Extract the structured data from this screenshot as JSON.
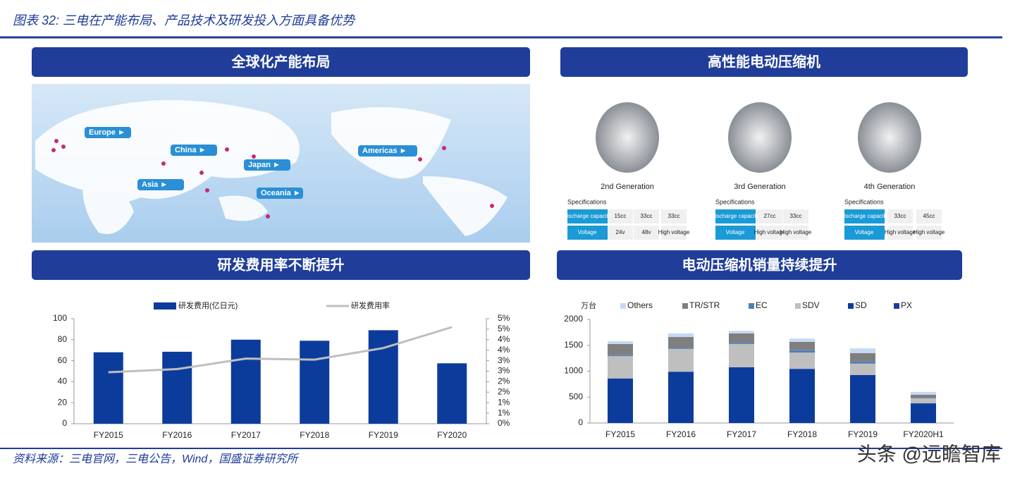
{
  "header": {
    "title": "图表 32: 三电在产能布局、产品技术及研发投入方面具备优势"
  },
  "panels": [
    "全球化产能布局",
    "高性能电动压缩机",
    "研发费用率不断提升",
    "电动压缩机销量持续提升"
  ],
  "map": {
    "labels": [
      "Europe ►",
      "China ►",
      "Japan ►",
      "Asia ►",
      "Americas ►",
      "Oceania ►"
    ]
  },
  "compressors": [
    {
      "generation": "2nd Generation",
      "spec_title": "Specifications",
      "rows": [
        [
          "Discharge capacity",
          "15cc",
          "33cc",
          "33cc"
        ],
        [
          "Voltage",
          "24v",
          "48v",
          "High voltage"
        ]
      ]
    },
    {
      "generation": "3rd Generation",
      "spec_title": "Specifications",
      "rows": [
        [
          "Discharge capacity",
          "27cc",
          "33cc"
        ],
        [
          "Voltage",
          "High voltage",
          "High voltage"
        ]
      ]
    },
    {
      "generation": "4th Generation",
      "spec_title": "Specifications",
      "rows": [
        [
          "Discharge capacity",
          "33cc",
          "45cc"
        ],
        [
          "Voltage",
          "High voltage",
          "High voltage"
        ]
      ]
    }
  ],
  "chart_data": [
    {
      "type": "bar_line",
      "categories": [
        "FY2015",
        "FY2016",
        "FY2017",
        "FY2018",
        "FY2019",
        "FY2020"
      ],
      "series": [
        {
          "name": "研发费用(亿日元)",
          "type": "bar",
          "color": "#0c3c9b",
          "values": [
            68,
            68.5,
            80,
            79,
            89,
            57.5
          ]
        },
        {
          "name": "研发费用率",
          "type": "line",
          "axis": "y2",
          "color": "#bfbfbf",
          "values": [
            2.45,
            2.6,
            3.1,
            3.05,
            3.6,
            4.6
          ]
        }
      ],
      "ylim": [
        0,
        100
      ],
      "yticks": [
        0,
        20,
        40,
        60,
        80,
        100
      ],
      "y2lim": [
        0,
        5
      ],
      "y2ticks": [
        {
          "value": 0,
          "label": "0%"
        },
        {
          "value": 0.5,
          "label": "1%"
        },
        {
          "value": 1,
          "label": "1%"
        },
        {
          "value": 1.5,
          "label": "2%"
        },
        {
          "value": 2,
          "label": "2%"
        },
        {
          "value": 2.5,
          "label": "3%"
        },
        {
          "value": 3,
          "label": "3%"
        },
        {
          "value": 3.5,
          "label": "4%"
        },
        {
          "value": 4,
          "label": "4%"
        },
        {
          "value": 4.5,
          "label": "5%"
        },
        {
          "value": 5,
          "label": "5%"
        }
      ],
      "legend": "top"
    },
    {
      "type": "stacked_bar",
      "y_label": "万台",
      "categories": [
        "FY2015",
        "FY2016",
        "FY2017",
        "FY2018",
        "FY2019",
        "FY2020H1"
      ],
      "series": [
        {
          "name": "Others",
          "color": "#c5d9f1",
          "values": [
            55,
            70,
            50,
            65,
            90,
            55
          ]
        },
        {
          "name": "TR/STR",
          "color": "#7f7f7f",
          "values": [
            215,
            210,
            180,
            160,
            165,
            60
          ]
        },
        {
          "name": "EC",
          "color": "#4f81bd",
          "values": [
            20,
            20,
            25,
            45,
            40,
            10
          ]
        },
        {
          "name": "SDV",
          "color": "#bfbfbf",
          "values": [
            430,
            440,
            450,
            315,
            220,
            95
          ]
        },
        {
          "name": "SD",
          "color": "#0c3c9b",
          "values": [
            860,
            990,
            1075,
            1045,
            925,
            380
          ]
        },
        {
          "name": "PX",
          "color": "#1f3d99",
          "values": [
            0,
            0,
            0,
            0,
            0,
            0
          ]
        }
      ],
      "ylim": [
        0,
        2000
      ],
      "yticks": [
        0,
        500,
        1000,
        1500,
        2000
      ],
      "legend": "top"
    }
  ],
  "source": "资料来源：三电官网，三电公告，Wind，国盛证券研究所",
  "watermark": "头条 @远瞻智库"
}
